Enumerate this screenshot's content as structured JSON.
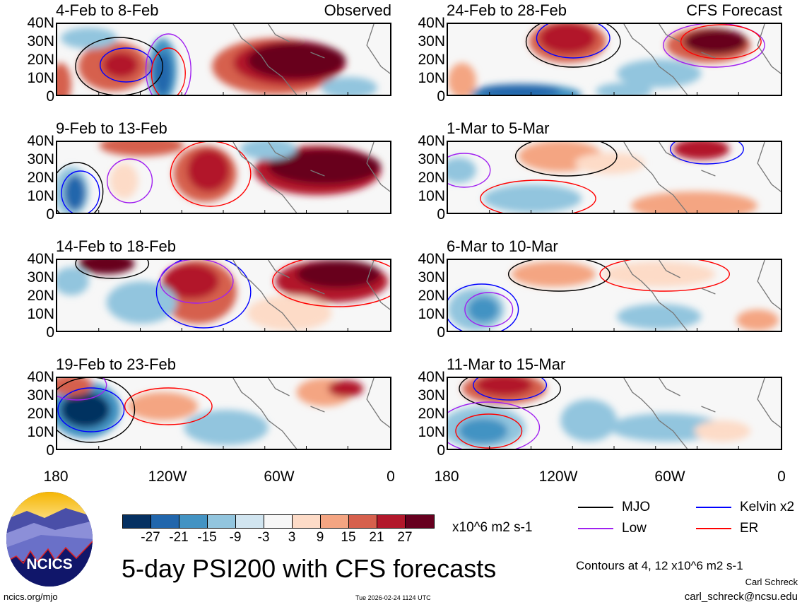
{
  "chart_data": {
    "type": "heatmap",
    "title": "5-day PSI200 with CFS forecasts",
    "variable": "PSI200",
    "units": "x10^6 m2 s-1",
    "x_tick_labels": [
      "180",
      "120W",
      "60W",
      "0"
    ],
    "y_tick_labels": [
      "40N",
      "30N",
      "20N",
      "10N",
      "0"
    ],
    "xlim": [
      180,
      0
    ],
    "ylim": [
      0,
      40
    ],
    "colorbar": {
      "levels": [
        "-27",
        "-21",
        "-15",
        "-9",
        "-3",
        "3",
        "9",
        "15",
        "21",
        "27"
      ],
      "colors": [
        "#053061",
        "#2166ac",
        "#4393c3",
        "#92c5de",
        "#d1e5f0",
        "#f7f7f7",
        "#fddbc7",
        "#f4a582",
        "#d6604d",
        "#b2182b",
        "#67001f"
      ]
    },
    "panels": [
      {
        "title": "4-Feb to 8-Feb",
        "tag": "Observed"
      },
      {
        "title": "24-Feb to 28-Feb",
        "tag": "CFS Forecast"
      },
      {
        "title": "9-Feb to 13-Feb"
      },
      {
        "title": "1-Mar to 5-Mar"
      },
      {
        "title": "14-Feb to 18-Feb"
      },
      {
        "title": "6-Mar to 10-Mar"
      },
      {
        "title": "19-Feb to 23-Feb"
      },
      {
        "title": "11-Mar to 15-Mar"
      }
    ],
    "legend": [
      {
        "label": "MJO",
        "color": "#000000"
      },
      {
        "label": "Kelvin x2",
        "color": "#0000ff"
      },
      {
        "label": "Low",
        "color": "#a020f0"
      },
      {
        "label": "ER",
        "color": "#ff0000"
      }
    ],
    "contour_note": "Contours at 4, 12 x10^6 m2 s-1"
  },
  "footer": {
    "logo_text": "NCICS",
    "url": "ncics.org/mjo",
    "timestamp": "Tue 2026-02-24 1124 UTC",
    "author": "Carl Schreck",
    "email": "carl_schreck@ncsu.edu"
  }
}
